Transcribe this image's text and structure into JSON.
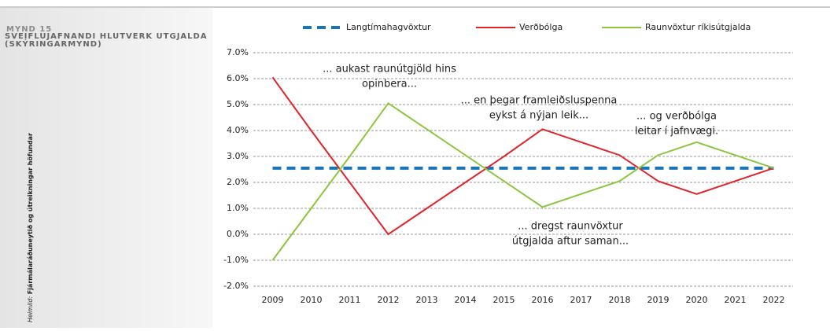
{
  "sidebar": {
    "figure": "MYND 15",
    "title": "SVEIFLUJAFNANDI HLUTVERK ÚTGJALDA (SKÝRINGARMYND)",
    "source_label": "Heimild:",
    "source": "Fjármálaráðuneytið og útreikningar höfundar"
  },
  "chart_data": {
    "type": "line",
    "categories": [
      "2009",
      "2010",
      "2011",
      "2012",
      "2013",
      "2014",
      "2015",
      "2016",
      "2017",
      "2018",
      "2019",
      "2020",
      "2021",
      "2022"
    ],
    "series": [
      {
        "name": "Langtímahagvöxtur",
        "color": "#1a75b8",
        "dashed": true,
        "values": [
          2.55,
          2.55,
          2.55,
          2.55,
          2.55,
          2.55,
          2.55,
          2.55,
          2.55,
          2.55,
          2.55,
          2.55,
          2.55,
          2.55
        ]
      },
      {
        "name": "Verðbólga",
        "color": "#e0242b",
        "values": [
          6.05,
          4.0,
          2.0,
          0,
          1.0,
          2.0,
          3.0,
          4.05,
          3.55,
          3.05,
          2.05,
          1.55,
          2.05,
          2.55
        ]
      },
      {
        "name": "Raunvöxtur ríkisútgjalda",
        "color": "#8cc63e",
        "values": [
          -1,
          1.0,
          3.0,
          5.05,
          4.05,
          3.05,
          2.05,
          1.05,
          1.55,
          2.05,
          3.05,
          3.55,
          3.05,
          2.55
        ]
      }
    ],
    "ylim": [
      -2,
      7
    ],
    "yticks": [
      {
        "value": -2,
        "label": "-2.0%"
      },
      {
        "value": -1,
        "label": "-1.0%"
      },
      {
        "value": 0,
        "label": "0.0%"
      },
      {
        "value": 1,
        "label": "1.0%"
      },
      {
        "value": 2,
        "label": "2.0%"
      },
      {
        "value": 3,
        "label": "3.0%"
      },
      {
        "value": 4,
        "label": "4.0%"
      },
      {
        "value": 5,
        "label": "5.0%"
      },
      {
        "value": 6,
        "label": "6.0%"
      },
      {
        "value": 7,
        "label": "7.0%"
      }
    ],
    "grid": true,
    "annotations": [
      [
        "... aukast raunútgjöld hins",
        "opinbera..."
      ],
      [
        "... en þegar framleiðsluspenna",
        "eykst á nýjan leik..."
      ],
      [
        "... og verðbólga",
        "leitar í jafnvægi."
      ],
      [
        "... dregst raunvöxtur",
        "útgjalda aftur saman..."
      ]
    ]
  }
}
